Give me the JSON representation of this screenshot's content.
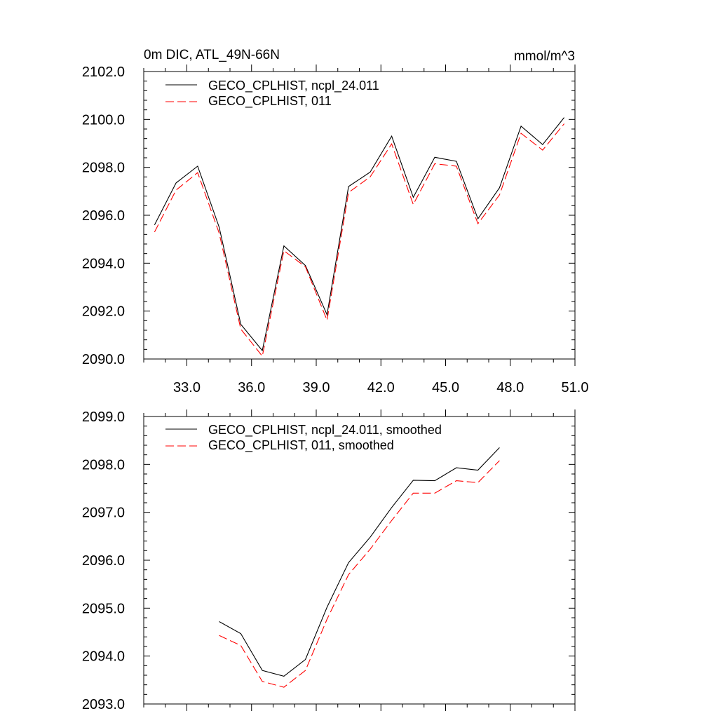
{
  "chart_data": [
    {
      "type": "line",
      "title_left": "0m DIC, ATL_49N-66N",
      "title_right": "mmol/m^3",
      "xlabel": "",
      "ylabel": "",
      "xlim": [
        31,
        51
      ],
      "ylim": [
        2090,
        2102
      ],
      "x_ticks": [
        33,
        36,
        39,
        42,
        45,
        48,
        51
      ],
      "x_tick_labels": [
        "33.0",
        "36.0",
        "39.0",
        "42.0",
        "45.0",
        "48.0",
        "51.0"
      ],
      "y_ticks": [
        2090,
        2092,
        2094,
        2096,
        2098,
        2100,
        2102
      ],
      "y_tick_labels": [
        "2090.0",
        "2092.0",
        "2094.0",
        "2096.0",
        "2098.0",
        "2100.0",
        "2102.0"
      ],
      "grid": false,
      "legend_position": "top-left",
      "x": [
        31.5,
        32.5,
        33.5,
        34.5,
        35.5,
        36.5,
        37.5,
        38.5,
        39.5,
        40.5,
        41.5,
        42.5,
        43.5,
        44.5,
        45.5,
        46.5,
        47.5,
        48.5,
        49.5,
        50.5
      ],
      "series": [
        {
          "name": "GECO_CPLHIST, ncpl_24.011",
          "color": "#000000",
          "dash": "solid",
          "values": [
            2095.6,
            2097.35,
            2098.05,
            2095.5,
            2091.45,
            2090.35,
            2094.72,
            2093.9,
            2091.85,
            2097.2,
            2097.8,
            2099.3,
            2096.75,
            2098.42,
            2098.25,
            2095.85,
            2097.15,
            2099.72,
            2098.95,
            2100.08
          ]
        },
        {
          "name": "GECO_CPLHIST, 011",
          "color": "#ff0000",
          "dash": "dashed",
          "values": [
            2095.3,
            2097.05,
            2097.78,
            2095.25,
            2091.25,
            2090.12,
            2094.52,
            2093.85,
            2091.62,
            2096.95,
            2097.6,
            2098.98,
            2096.45,
            2098.15,
            2098.05,
            2095.65,
            2096.85,
            2099.42,
            2098.72,
            2099.82
          ]
        }
      ]
    },
    {
      "type": "line",
      "xlabel": "",
      "ylabel": "",
      "xlim": [
        31,
        51
      ],
      "ylim": [
        2093,
        2099
      ],
      "x_ticks": [
        33,
        36,
        39,
        42,
        45,
        48,
        51
      ],
      "y_ticks": [
        2093,
        2094,
        2095,
        2096,
        2097,
        2098,
        2099
      ],
      "y_tick_labels": [
        "2093.0",
        "2094.0",
        "2095.0",
        "2096.0",
        "2097.0",
        "2098.0",
        "2099.0"
      ],
      "grid": false,
      "legend_position": "top-left",
      "x": [
        34.5,
        35.5,
        36.5,
        37.5,
        38.5,
        39.5,
        40.5,
        41.5,
        42.5,
        43.5,
        44.5,
        45.5,
        46.5,
        47.5
      ],
      "series": [
        {
          "name": "GECO_CPLHIST, ncpl_24.011, smoothed",
          "color": "#000000",
          "dash": "solid",
          "values": [
            2094.72,
            2094.47,
            2093.7,
            2093.58,
            2093.93,
            2095.02,
            2095.95,
            2096.48,
            2097.1,
            2097.67,
            2097.66,
            2097.93,
            2097.88,
            2098.35
          ]
        },
        {
          "name": "GECO_CPLHIST, 011, smoothed",
          "color": "#ff0000",
          "dash": "dashed",
          "values": [
            2094.43,
            2094.22,
            2093.47,
            2093.35,
            2093.7,
            2094.77,
            2095.7,
            2096.23,
            2096.83,
            2097.4,
            2097.4,
            2097.66,
            2097.62,
            2098.08
          ]
        }
      ]
    }
  ]
}
